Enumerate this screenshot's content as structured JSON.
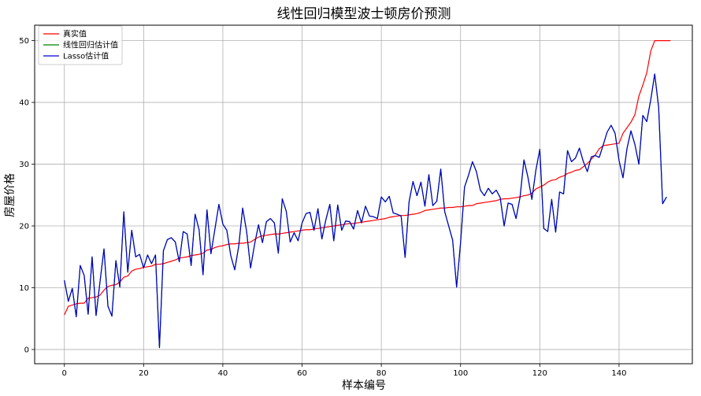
{
  "chart_data": {
    "type": "line",
    "title": "线性回归模型波士顿房价预测",
    "xlabel": "样本编号",
    "ylabel": "房屋价格",
    "xlim": [
      -7.5,
      158.5
    ],
    "ylim": [
      -2.3,
      52.5
    ],
    "x_ticks": [
      0,
      20,
      40,
      60,
      80,
      100,
      120,
      140
    ],
    "y_ticks": [
      0,
      10,
      20,
      30,
      40,
      50
    ],
    "grid": true,
    "legend_position": "top-left",
    "series": [
      {
        "name": "真实值",
        "color": "#ff0000",
        "values": [
          5.6,
          7.0,
          7.2,
          7.4,
          7.5,
          7.5,
          8.3,
          8.4,
          8.5,
          8.8,
          9.6,
          10.2,
          10.4,
          10.5,
          10.9,
          11.7,
          11.9,
          12.7,
          13.0,
          13.1,
          13.3,
          13.4,
          13.5,
          13.8,
          13.8,
          13.9,
          14.1,
          14.3,
          14.5,
          14.8,
          14.9,
          15.0,
          15.2,
          15.3,
          15.4,
          15.6,
          16.1,
          16.2,
          16.5,
          16.7,
          16.8,
          17.0,
          17.1,
          17.1,
          17.2,
          17.2,
          17.3,
          17.4,
          17.8,
          18.2,
          18.4,
          18.5,
          18.6,
          18.7,
          18.7,
          18.8,
          18.9,
          19.0,
          19.1,
          19.2,
          19.3,
          19.4,
          19.4,
          19.5,
          19.6,
          19.7,
          19.8,
          19.9,
          20.0,
          20.1,
          20.2,
          20.3,
          20.4,
          20.4,
          20.5,
          20.6,
          20.7,
          20.8,
          20.9,
          21.0,
          21.1,
          21.2,
          21.4,
          21.5,
          21.6,
          21.7,
          21.7,
          21.8,
          21.9,
          22.0,
          22.2,
          22.5,
          22.6,
          22.7,
          22.8,
          22.9,
          22.9,
          23.0,
          23.0,
          23.1,
          23.1,
          23.2,
          23.3,
          23.3,
          23.6,
          23.7,
          23.8,
          23.9,
          24.0,
          24.1,
          24.3,
          24.4,
          24.4,
          24.5,
          24.6,
          24.7,
          24.9,
          25.0,
          25.3,
          26.0,
          26.3,
          26.6,
          27.1,
          27.4,
          27.5,
          27.9,
          28.1,
          28.5,
          28.7,
          29.0,
          29.1,
          29.6,
          30.1,
          30.8,
          31.5,
          32.5,
          33.0,
          33.1,
          33.2,
          33.3,
          33.4,
          35.0,
          35.9,
          36.8,
          38.0,
          41.0,
          42.8,
          44.8,
          48.3,
          50.0,
          50.0,
          50.0,
          50.0,
          50.0
        ]
      },
      {
        "name": "线性回归估计值",
        "color": "#008000",
        "values": [
          11.2,
          7.8,
          9.9,
          5.3,
          13.6,
          12.0,
          5.7,
          15.0,
          5.5,
          11.0,
          16.3,
          7.0,
          5.4,
          14.4,
          10.1,
          22.3,
          12.5,
          19.3,
          15.0,
          15.4,
          13.2,
          15.3,
          13.9,
          15.3,
          0.3,
          16.0,
          17.8,
          18.1,
          17.4,
          14.2,
          19.1,
          18.7,
          13.6,
          21.9,
          19.4,
          12.1,
          22.6,
          15.5,
          19.5,
          23.5,
          20.3,
          19.3,
          15.2,
          12.9,
          16.7,
          22.9,
          19.1,
          13.2,
          17.0,
          20.2,
          17.3,
          20.7,
          21.2,
          20.5,
          15.6,
          24.4,
          22.4,
          17.4,
          18.9,
          17.6,
          20.5,
          22.0,
          22.2,
          19.3,
          22.8,
          17.9,
          21.0,
          23.5,
          17.6,
          23.4,
          19.3,
          20.8,
          20.7,
          19.5,
          22.5,
          20.5,
          23.2,
          21.6,
          21.5,
          21.2,
          24.7,
          23.9,
          24.8,
          22.1,
          21.9,
          21.6,
          14.9,
          23.9,
          27.2,
          24.9,
          27.1,
          23.2,
          28.3,
          23.3,
          24.0,
          29.2,
          22.3,
          20.0,
          17.7,
          10.1,
          17.3,
          26.3,
          28.2,
          30.4,
          28.8,
          25.8,
          24.9,
          26.1,
          25.2,
          25.8,
          24.6,
          20.0,
          23.7,
          23.5,
          21.2,
          24.6,
          30.7,
          27.9,
          24.3,
          29.0,
          32.4,
          19.6,
          19.1,
          24.3,
          19.0,
          25.5,
          25.2,
          32.2,
          30.4,
          31.0,
          32.6,
          30.4,
          28.8,
          31.2,
          31.4,
          31.1,
          33.1,
          35.2,
          36.3,
          35.0,
          30.6,
          27.8,
          32.5,
          35.4,
          33.2,
          30.0,
          37.9,
          36.9,
          40.4,
          44.6,
          39.2,
          23.6,
          24.7
        ]
      },
      {
        "name": "Lasso估计值",
        "color": "#0000cd",
        "values": [
          11.2,
          7.8,
          9.9,
          5.3,
          13.6,
          12.0,
          5.7,
          15.0,
          5.5,
          11.0,
          16.3,
          7.0,
          5.4,
          14.4,
          10.1,
          22.3,
          12.5,
          19.3,
          15.0,
          15.4,
          13.2,
          15.3,
          13.9,
          15.3,
          0.3,
          16.0,
          17.8,
          18.1,
          17.4,
          14.2,
          19.1,
          18.7,
          13.6,
          21.9,
          19.4,
          12.1,
          22.6,
          15.5,
          19.5,
          23.5,
          20.3,
          19.3,
          15.2,
          12.9,
          16.7,
          22.9,
          19.1,
          13.2,
          17.0,
          20.2,
          17.3,
          20.7,
          21.2,
          20.5,
          15.6,
          24.4,
          22.4,
          17.4,
          18.9,
          17.6,
          20.5,
          22.0,
          22.2,
          19.3,
          22.8,
          17.9,
          21.0,
          23.5,
          17.6,
          23.4,
          19.3,
          20.8,
          20.7,
          19.5,
          22.5,
          20.5,
          23.2,
          21.6,
          21.5,
          21.2,
          24.7,
          23.9,
          24.8,
          22.1,
          21.9,
          21.6,
          14.9,
          23.9,
          27.2,
          24.9,
          27.1,
          23.2,
          28.3,
          23.3,
          24.0,
          29.2,
          22.3,
          20.0,
          17.7,
          10.1,
          17.3,
          26.3,
          28.2,
          30.4,
          28.8,
          25.8,
          24.9,
          26.1,
          25.2,
          25.8,
          24.6,
          20.0,
          23.7,
          23.5,
          21.2,
          24.6,
          30.7,
          27.9,
          24.3,
          29.0,
          32.4,
          19.6,
          19.1,
          24.3,
          19.0,
          25.5,
          25.2,
          32.2,
          30.4,
          31.0,
          32.6,
          30.4,
          28.8,
          31.2,
          31.4,
          31.1,
          33.1,
          35.2,
          36.3,
          35.0,
          30.6,
          27.8,
          32.5,
          35.4,
          33.2,
          30.0,
          37.9,
          36.9,
          40.4,
          44.6,
          39.2,
          23.6,
          24.7
        ]
      }
    ]
  }
}
